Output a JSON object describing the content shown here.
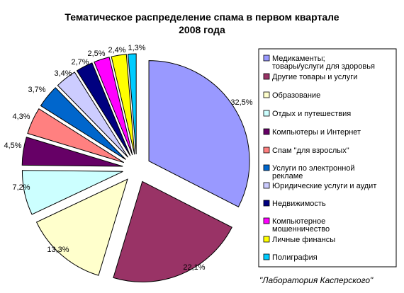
{
  "chart_data": {
    "type": "pie",
    "exploded": true,
    "title_line1": "Тематическое распределение спама в первом квартале",
    "title_line2": "2008 года",
    "categories": [
      "Медикаменты; товары/услуги для здоровья",
      "Другие товары и услуги",
      "Образование",
      "Отдых и путешествия",
      "Компьютеры и Интернет",
      "Спам \"для взрослых\"",
      "Услуги по электронной рекламе",
      "Юридические услуги и аудит",
      "Недвижимость",
      "Компьютерное мошенничество",
      "Личные финансы",
      "Полиграфия"
    ],
    "values": [
      32.5,
      22.1,
      13.3,
      7.2,
      4.5,
      4.3,
      3.7,
      3.4,
      2.7,
      2.5,
      2.4,
      1.3
    ],
    "value_labels": [
      "32,5%",
      "22,1%",
      "13,3%",
      "7,2%",
      "4,5%",
      "4,3%",
      "3,7%",
      "3,4%",
      "2,7%",
      "2,5%",
      "2,4%",
      "1,3%"
    ],
    "colors": [
      "#9999ff",
      "#993366",
      "#ffffcc",
      "#ccffff",
      "#660066",
      "#ff8080",
      "#0066cc",
      "#ccccff",
      "#000080",
      "#ff00ff",
      "#ffff00",
      "#00ccff"
    ],
    "legend": {
      "position": "right",
      "items": [
        [
          "Медикаменты;",
          "товары/услуги для здоровья"
        ],
        [
          "Другие товары и услуги"
        ],
        [
          "Образование"
        ],
        [
          "Отдых и путешествия"
        ],
        [
          "Компьютеры и Интернет"
        ],
        [
          "Спам \"для взрослых\""
        ],
        [
          "Услуги по электронной",
          "рекламе"
        ],
        [
          "Юридические услуги и аудит"
        ],
        [
          "Недвижимость"
        ],
        [
          "Компьютерное",
          "мошенничество"
        ],
        [
          "Личные финансы"
        ],
        [
          "Полиграфия"
        ]
      ]
    },
    "credit": "\"Лаборатория Касперского\""
  }
}
